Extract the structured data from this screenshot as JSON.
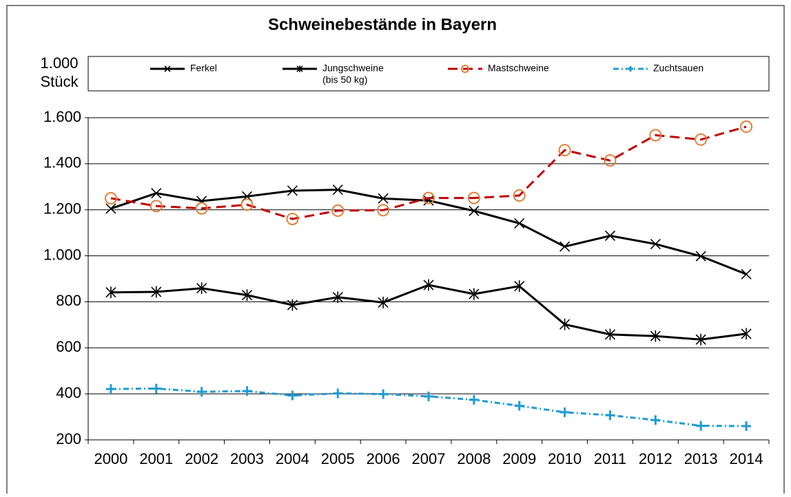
{
  "chart_data": {
    "type": "line",
    "title": "Schweinebestände in Bayern",
    "y_axis_label": [
      "1.000",
      "Stück"
    ],
    "categories": [
      "2000",
      "2001",
      "2002",
      "2003",
      "2004",
      "2005",
      "2006",
      "2007",
      "2008",
      "2009",
      "2010",
      "2011",
      "2012",
      "2013",
      "2014"
    ],
    "series": [
      {
        "name": "Ferkel",
        "color": "#000000",
        "dash": "solid",
        "marker": "x",
        "values": [
          1205,
          1272,
          1238,
          1258,
          1283,
          1287,
          1249,
          1240,
          1195,
          1141,
          1040,
          1087,
          1051,
          998,
          920
        ]
      },
      {
        "name": "Jungschweine",
        "name_note": "(bis 50 kg)",
        "color": "#000000",
        "dash": "solid",
        "marker": "asterisk",
        "values": [
          841,
          843,
          859,
          829,
          786,
          820,
          797,
          873,
          834,
          868,
          702,
          658,
          651,
          636,
          661
        ]
      },
      {
        "name": "Mastschweine",
        "color": "#c00000",
        "marker_color": "#e0803a",
        "dash": "dash",
        "marker": "circle",
        "values": [
          1250,
          1216,
          1206,
          1222,
          1160,
          1196,
          1198,
          1251,
          1251,
          1262,
          1459,
          1414,
          1524,
          1505,
          1561
        ]
      },
      {
        "name": "Zuchtsauen",
        "color": "#1f9bd4",
        "dash": "dashdot",
        "marker": "plus",
        "values": [
          421,
          423,
          409,
          412,
          393,
          402,
          399,
          389,
          374,
          348,
          320,
          307,
          286,
          261,
          260
        ]
      }
    ],
    "ylim": [
      200,
      1600
    ],
    "yticks": [
      200,
      400,
      600,
      800,
      {
        "value": 1000,
        "label": "1.000"
      },
      {
        "value": 1200,
        "label": "1.200"
      },
      {
        "value": 1400,
        "label": "1.400"
      },
      {
        "value": 1600,
        "label": "1.600"
      }
    ],
    "grid": true,
    "legend": "top"
  }
}
